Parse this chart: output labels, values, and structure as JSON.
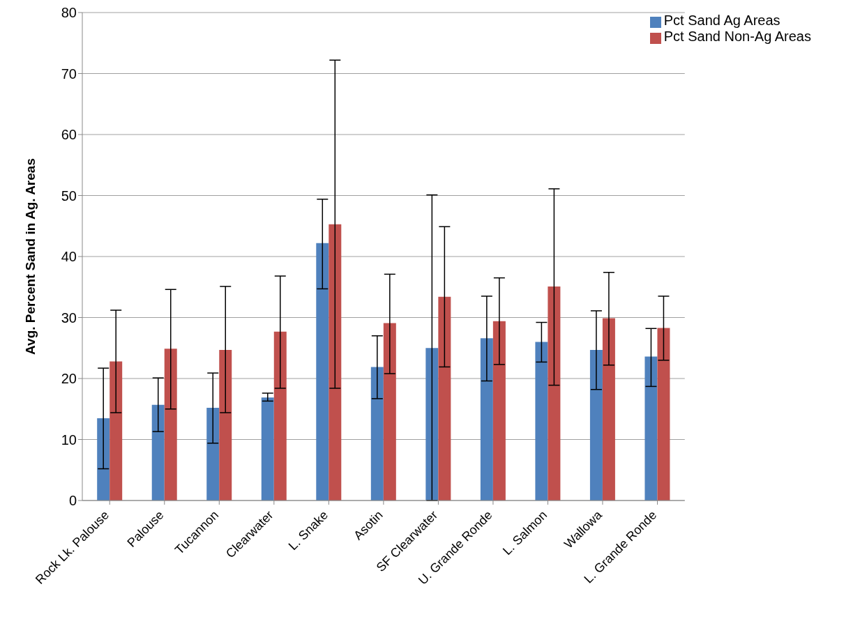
{
  "chart_data": {
    "type": "bar",
    "ylabel": "Avg. Percent Sand in Ag. Areas",
    "categories": [
      "Rock Lk. Palouse",
      "Palouse",
      "Tucannon",
      "Clearwater",
      "L. Snake",
      "Asotin",
      "SF Clearwater",
      "U. Grande Ronde",
      "L. Salmon",
      "Wallowa",
      "L. Grande Ronde"
    ],
    "series": [
      {
        "name": "Pct Sand Ag Areas",
        "color": "#4f81bd",
        "values": [
          13.5,
          15.7,
          15.2,
          16.9,
          42.2,
          21.9,
          25.0,
          26.6,
          26.0,
          24.7,
          23.6
        ],
        "errors": [
          [
            5.2,
            21.7
          ],
          [
            11.3,
            20.1
          ],
          [
            9.4,
            20.9
          ],
          [
            16.3,
            17.6
          ],
          [
            34.7,
            49.4
          ],
          [
            16.7,
            27.0
          ],
          [
            0,
            50.1
          ],
          [
            19.6,
            33.5
          ],
          [
            22.7,
            29.2
          ],
          [
            18.2,
            31.1
          ],
          [
            18.7,
            28.2
          ]
        ]
      },
      {
        "name": "Pct Sand Non-Ag Areas",
        "color": "#c0504d",
        "values": [
          22.8,
          24.9,
          24.7,
          27.7,
          45.3,
          29.1,
          33.4,
          29.4,
          35.1,
          29.9,
          28.3
        ],
        "errors": [
          [
            14.4,
            31.2
          ],
          [
            15.0,
            34.6
          ],
          [
            14.4,
            35.1
          ],
          [
            18.4,
            36.8
          ],
          [
            18.4,
            72.2
          ],
          [
            20.8,
            37.1
          ],
          [
            21.9,
            44.9
          ],
          [
            22.3,
            36.5
          ],
          [
            18.9,
            51.1
          ],
          [
            22.2,
            37.4
          ],
          [
            23.0,
            33.5
          ]
        ]
      }
    ],
    "ylim": [
      0,
      80
    ],
    "yticks": [
      0,
      10,
      20,
      30,
      40,
      50,
      60,
      70,
      80
    ],
    "grid": "y",
    "legend": "top right"
  }
}
